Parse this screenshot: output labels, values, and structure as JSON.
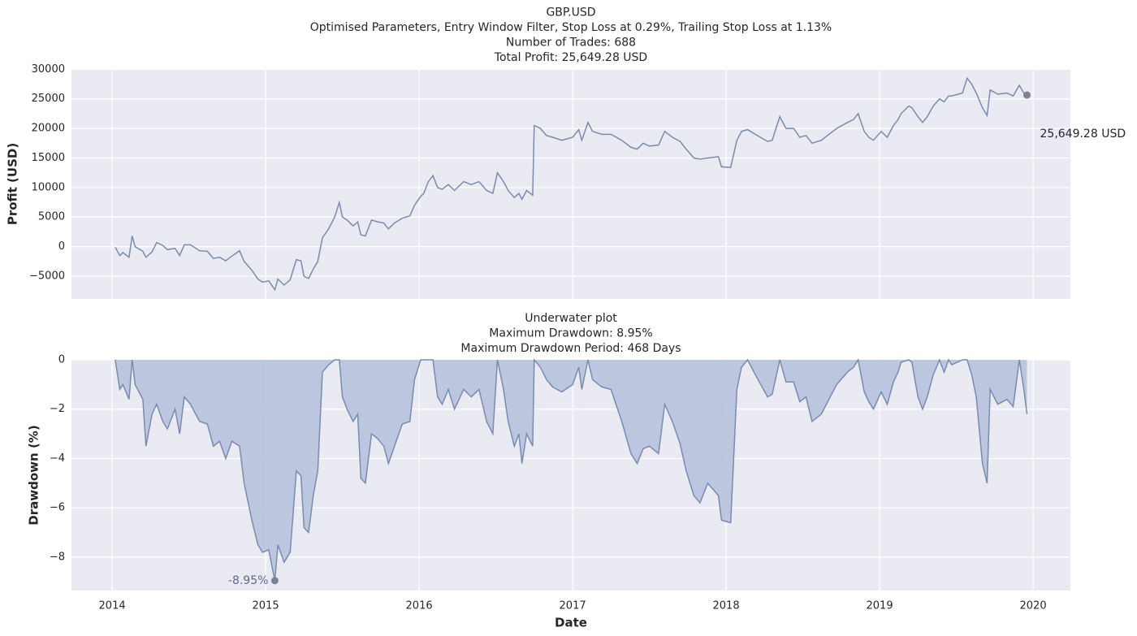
{
  "chart_data": [
    {
      "type": "line",
      "title": [
        "GBP.USD",
        "Optimised Parameters, Entry Window Filter, Stop Loss at 0.29%, Trailing Stop Loss at 1.13%",
        "Number of Trades: 688",
        "Total Profit: 25,649.28 USD"
      ],
      "ylabel": "Profit (USD)",
      "annotation": "25,649.28 USD",
      "color": "#7a8bad",
      "marker_color": "#7f8090",
      "grid": true,
      "show_xtick_labels": false,
      "xlim": [
        2013.735,
        2020.243
      ],
      "xticks": [
        2014,
        2015,
        2016,
        2017,
        2018,
        2019,
        2020
      ],
      "ylim": [
        -8850,
        30050
      ],
      "yticks": [
        30000,
        25000,
        20000,
        15000,
        10000,
        5000,
        0,
        {
          "value": -5000,
          "label": "−5000"
        }
      ],
      "x": [
        2014.02,
        2014.05,
        2014.07,
        2014.11,
        2014.13,
        2014.15,
        2014.2,
        2014.22,
        2014.26,
        2014.29,
        2014.33,
        2014.36,
        2014.41,
        2014.44,
        2014.47,
        2014.51,
        2014.57,
        2014.62,
        2014.66,
        2014.7,
        2014.74,
        2014.78,
        2014.83,
        2014.86,
        2014.91,
        2014.95,
        2014.98,
        2015.02,
        2015.06,
        2015.08,
        2015.12,
        2015.16,
        2015.2,
        2015.23,
        2015.25,
        2015.28,
        2015.31,
        2015.34,
        2015.37,
        2015.41,
        2015.45,
        2015.48,
        2015.5,
        2015.53,
        2015.57,
        2015.6,
        2015.62,
        2015.65,
        2015.69,
        2015.73,
        2015.77,
        2015.8,
        2015.84,
        2015.89,
        2015.94,
        2015.97,
        2016.01,
        2016.03,
        2016.06,
        2016.09,
        2016.12,
        2016.15,
        2016.19,
        2016.23,
        2016.29,
        2016.34,
        2016.39,
        2016.44,
        2016.48,
        2016.51,
        2016.55,
        2016.58,
        2016.62,
        2016.65,
        2016.67,
        2016.7,
        2016.74,
        2016.75,
        2016.79,
        2016.83,
        2016.87,
        2016.93,
        2017.0,
        2017.04,
        2017.06,
        2017.1,
        2017.13,
        2017.19,
        2017.25,
        2017.32,
        2017.38,
        2017.42,
        2017.46,
        2017.5,
        2017.56,
        2017.6,
        2017.65,
        2017.7,
        2017.74,
        2017.79,
        2017.83,
        2017.88,
        2017.95,
        2017.97,
        2018.03,
        2018.07,
        2018.1,
        2018.14,
        2018.19,
        2018.27,
        2018.3,
        2018.35,
        2018.39,
        2018.44,
        2018.48,
        2018.52,
        2018.56,
        2018.62,
        2018.67,
        2018.72,
        2018.79,
        2018.83,
        2018.86,
        2018.9,
        2018.93,
        2018.96,
        2019.01,
        2019.05,
        2019.09,
        2019.12,
        2019.14,
        2019.19,
        2019.21,
        2019.25,
        2019.28,
        2019.31,
        2019.35,
        2019.39,
        2019.42,
        2019.45,
        2019.47,
        2019.54,
        2019.57,
        2019.6,
        2019.63,
        2019.67,
        2019.7,
        2019.72,
        2019.77,
        2019.83,
        2019.87,
        2019.91,
        2019.94,
        2019.96
      ],
      "values": [
        -100,
        -1500,
        -1000,
        -1800,
        1800,
        0,
        -800,
        -1800,
        -900,
        700,
        200,
        -500,
        -300,
        -1500,
        300,
        300,
        -700,
        -800,
        -2000,
        -1800,
        -2400,
        -1600,
        -700,
        -2500,
        -4000,
        -5500,
        -6000,
        -5800,
        -7300,
        -5500,
        -6500,
        -5600,
        -2200,
        -2400,
        -5000,
        -5400,
        -3800,
        -2500,
        1500,
        3000,
        5000,
        7500,
        5000,
        4500,
        3500,
        4200,
        2000,
        1800,
        4500,
        4200,
        4000,
        3000,
        4000,
        4800,
        5200,
        7000,
        8500,
        9000,
        11000,
        12000,
        10000,
        9700,
        10500,
        9500,
        11000,
        10500,
        11000,
        9500,
        9000,
        12500,
        11000,
        9500,
        8300,
        9000,
        8000,
        9500,
        8700,
        20500,
        20000,
        18800,
        18500,
        18000,
        18500,
        19800,
        18000,
        21000,
        19500,
        19000,
        19000,
        18000,
        16800,
        16500,
        17500,
        17000,
        17200,
        19500,
        18500,
        17800,
        16500,
        15000,
        14800,
        15000,
        15200,
        13500,
        13400,
        18000,
        19500,
        19800,
        19000,
        17800,
        18000,
        22000,
        20000,
        20000,
        18500,
        18800,
        17500,
        18000,
        19000,
        20000,
        21000,
        21500,
        22500,
        19500,
        18500,
        18000,
        19500,
        18500,
        20500,
        21500,
        22500,
        23800,
        23500,
        22000,
        21000,
        22000,
        23800,
        25000,
        24500,
        25500,
        25500,
        26000,
        28500,
        27500,
        26000,
        23500,
        22200,
        26500,
        25800,
        26000,
        25500,
        27300,
        26000,
        25649.28
      ]
    },
    {
      "type": "area",
      "title": [
        "Underwater plot",
        "Maximum Drawdown: 8.95%",
        "Maximum Drawdown Period: 468 Days"
      ],
      "xlabel": "Date",
      "ylabel": "Drawdown (%)",
      "annotation": "-8.95%",
      "color": "#7a8bad",
      "fill_color": "#b7c2dc",
      "marker_color": "#7f8090",
      "grid": true,
      "show_xtick_labels": true,
      "xlim": [
        2013.735,
        2020.243
      ],
      "xticks": [
        2014,
        2015,
        2016,
        2017,
        2018,
        2019,
        2020
      ],
      "ylim": [
        -9.35,
        0
      ],
      "yticks": [
        0,
        {
          "value": -2,
          "label": "−2"
        },
        {
          "value": -4,
          "label": "−4"
        },
        {
          "value": -6,
          "label": "−6"
        },
        {
          "value": -8,
          "label": "−8"
        }
      ],
      "x": [
        2014.02,
        2014.05,
        2014.07,
        2014.11,
        2014.13,
        2014.15,
        2014.2,
        2014.22,
        2014.26,
        2014.29,
        2014.33,
        2014.36,
        2014.41,
        2014.44,
        2014.47,
        2014.51,
        2014.57,
        2014.62,
        2014.66,
        2014.7,
        2014.74,
        2014.78,
        2014.83,
        2014.86,
        2014.91,
        2014.95,
        2014.98,
        2015.02,
        2015.06,
        2015.08,
        2015.12,
        2015.16,
        2015.2,
        2015.23,
        2015.25,
        2015.28,
        2015.31,
        2015.34,
        2015.37,
        2015.41,
        2015.45,
        2015.48,
        2015.5,
        2015.53,
        2015.57,
        2015.6,
        2015.62,
        2015.65,
        2015.69,
        2015.73,
        2015.77,
        2015.8,
        2015.84,
        2015.89,
        2015.94,
        2015.97,
        2016.01,
        2016.03,
        2016.06,
        2016.09,
        2016.12,
        2016.15,
        2016.19,
        2016.23,
        2016.29,
        2016.34,
        2016.39,
        2016.44,
        2016.48,
        2016.51,
        2016.55,
        2016.58,
        2016.62,
        2016.65,
        2016.67,
        2016.7,
        2016.74,
        2016.75,
        2016.79,
        2016.83,
        2016.87,
        2016.93,
        2017.0,
        2017.04,
        2017.06,
        2017.1,
        2017.13,
        2017.19,
        2017.25,
        2017.32,
        2017.38,
        2017.42,
        2017.46,
        2017.5,
        2017.56,
        2017.6,
        2017.65,
        2017.7,
        2017.74,
        2017.79,
        2017.83,
        2017.88,
        2017.95,
        2017.97,
        2018.03,
        2018.07,
        2018.1,
        2018.14,
        2018.19,
        2018.27,
        2018.3,
        2018.35,
        2018.39,
        2018.44,
        2018.48,
        2018.52,
        2018.56,
        2018.62,
        2018.67,
        2018.72,
        2018.79,
        2018.83,
        2018.86,
        2018.9,
        2018.93,
        2018.96,
        2019.01,
        2019.05,
        2019.09,
        2019.12,
        2019.14,
        2019.19,
        2019.21,
        2019.25,
        2019.28,
        2019.31,
        2019.35,
        2019.39,
        2019.42,
        2019.45,
        2019.47,
        2019.54,
        2019.57,
        2019.6,
        2019.63,
        2019.67,
        2019.7,
        2019.72,
        2019.77,
        2019.83,
        2019.87,
        2019.91,
        2019.94,
        2019.96
      ],
      "values": [
        0,
        -1.2,
        -1.0,
        -1.6,
        0,
        -1.0,
        -1.6,
        -3.5,
        -2.2,
        -1.8,
        -2.5,
        -2.8,
        -2.0,
        -3.0,
        -1.5,
        -1.8,
        -2.5,
        -2.6,
        -3.5,
        -3.3,
        -4.0,
        -3.3,
        -3.5,
        -5.0,
        -6.5,
        -7.5,
        -7.8,
        -7.7,
        -8.95,
        -7.5,
        -8.2,
        -7.8,
        -4.5,
        -4.7,
        -6.8,
        -7.0,
        -5.5,
        -4.5,
        -0.5,
        -0.2,
        0,
        0,
        -1.5,
        -2.0,
        -2.5,
        -2.2,
        -4.8,
        -5.0,
        -3.0,
        -3.2,
        -3.5,
        -4.2,
        -3.5,
        -2.6,
        -2.5,
        -0.8,
        0,
        0,
        0,
        0,
        -1.5,
        -1.8,
        -1.2,
        -2.0,
        -1.2,
        -1.5,
        -1.2,
        -2.5,
        -3.0,
        0,
        -1.2,
        -2.5,
        -3.5,
        -3.0,
        -4.2,
        -3.0,
        -3.5,
        0,
        -0.3,
        -0.8,
        -1.1,
        -1.3,
        -1.0,
        -0.3,
        -1.2,
        0,
        -0.8,
        -1.1,
        -1.2,
        -2.5,
        -3.8,
        -4.2,
        -3.6,
        -3.5,
        -3.8,
        -1.8,
        -2.5,
        -3.4,
        -4.5,
        -5.5,
        -5.8,
        -5.0,
        -5.5,
        -6.5,
        -6.6,
        -1.2,
        -0.3,
        0,
        -0.6,
        -1.5,
        -1.4,
        0,
        -0.9,
        -0.9,
        -1.7,
        -1.5,
        -2.5,
        -2.2,
        -1.6,
        -1.0,
        -0.5,
        -0.3,
        0,
        -1.3,
        -1.7,
        -2.0,
        -1.3,
        -1.8,
        -0.9,
        -0.5,
        -0.1,
        0,
        -0.1,
        -1.5,
        -2.0,
        -1.5,
        -0.6,
        0,
        -0.5,
        0,
        -0.2,
        0,
        0,
        -0.6,
        -1.5,
        -4.2,
        -5.0,
        -1.2,
        -1.8,
        -1.6,
        -1.9,
        0,
        -1.2,
        -2.2
      ]
    }
  ]
}
